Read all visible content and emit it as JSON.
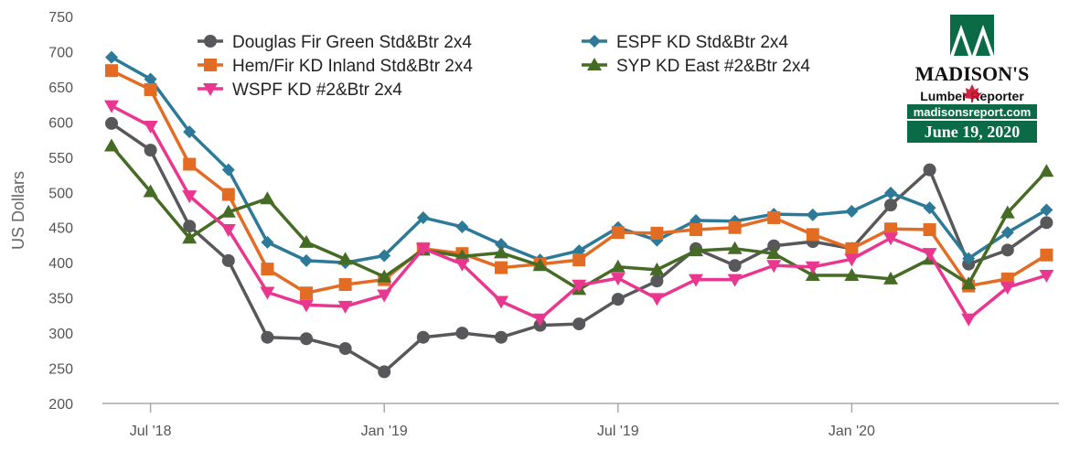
{
  "chart_data": {
    "type": "line",
    "title": "",
    "xlabel": "",
    "ylabel": "US Dollars",
    "ylim": [
      200,
      750
    ],
    "yticks": [
      200,
      250,
      300,
      350,
      400,
      450,
      500,
      550,
      600,
      650,
      700,
      750
    ],
    "xticks": [
      {
        "label": "Jul '18",
        "index": 1
      },
      {
        "label": "Jan '19",
        "index": 7
      },
      {
        "label": "Jul '19",
        "index": 13
      },
      {
        "label": "Jan '20",
        "index": 19
      }
    ],
    "grid": false,
    "legend": "top",
    "series": [
      {
        "name": "Douglas Fir Green Std&Btr 2x4",
        "color": "#58585b",
        "marker": "circle",
        "values": [
          598,
          560,
          452,
          403,
          294,
          292,
          278,
          245,
          294,
          300,
          294,
          311,
          313,
          348,
          374,
          420,
          396,
          424,
          430,
          420,
          482,
          532,
          398,
          418,
          457
        ]
      },
      {
        "name": "ESPF KD Std&Btr 2x4",
        "color": "#2d7a98",
        "marker": "diamond",
        "values": [
          692,
          661,
          586,
          532,
          429,
          403,
          400,
          410,
          464,
          451,
          426,
          404,
          417,
          450,
          432,
          460,
          459,
          469,
          468,
          473,
          499,
          478,
          406,
          443,
          475
        ]
      },
      {
        "name": "Hem/Fir KD Inland Std&Btr 2x4",
        "color": "#e36c25",
        "marker": "square",
        "values": [
          673,
          646,
          540,
          497,
          391,
          357,
          369,
          376,
          420,
          413,
          393,
          398,
          404,
          443,
          442,
          447,
          450,
          464,
          440,
          420,
          448,
          447,
          367,
          377,
          411
        ]
      },
      {
        "name": "SYP KD East #2&Btr 2x4",
        "color": "#456b25",
        "marker": "triangle-up",
        "values": [
          566,
          501,
          435,
          472,
          491,
          429,
          405,
          380,
          418,
          409,
          414,
          396,
          362,
          394,
          390,
          417,
          420,
          413,
          382,
          382,
          377,
          405,
          370,
          471,
          530
        ]
      },
      {
        "name": "WSPF KD #2&Btr 2x4",
        "color": "#e9378f",
        "marker": "triangle-down",
        "values": [
          623,
          594,
          495,
          447,
          358,
          340,
          338,
          354,
          420,
          398,
          345,
          320,
          368,
          378,
          349,
          376,
          376,
          396,
          394,
          405,
          435,
          413,
          320,
          365,
          382
        ]
      }
    ]
  },
  "logo": {
    "brand": "MADISON'S",
    "subtitle": "Lumber Reporter",
    "website": "madisonsreport.com",
    "date": "June 19, 2020"
  }
}
